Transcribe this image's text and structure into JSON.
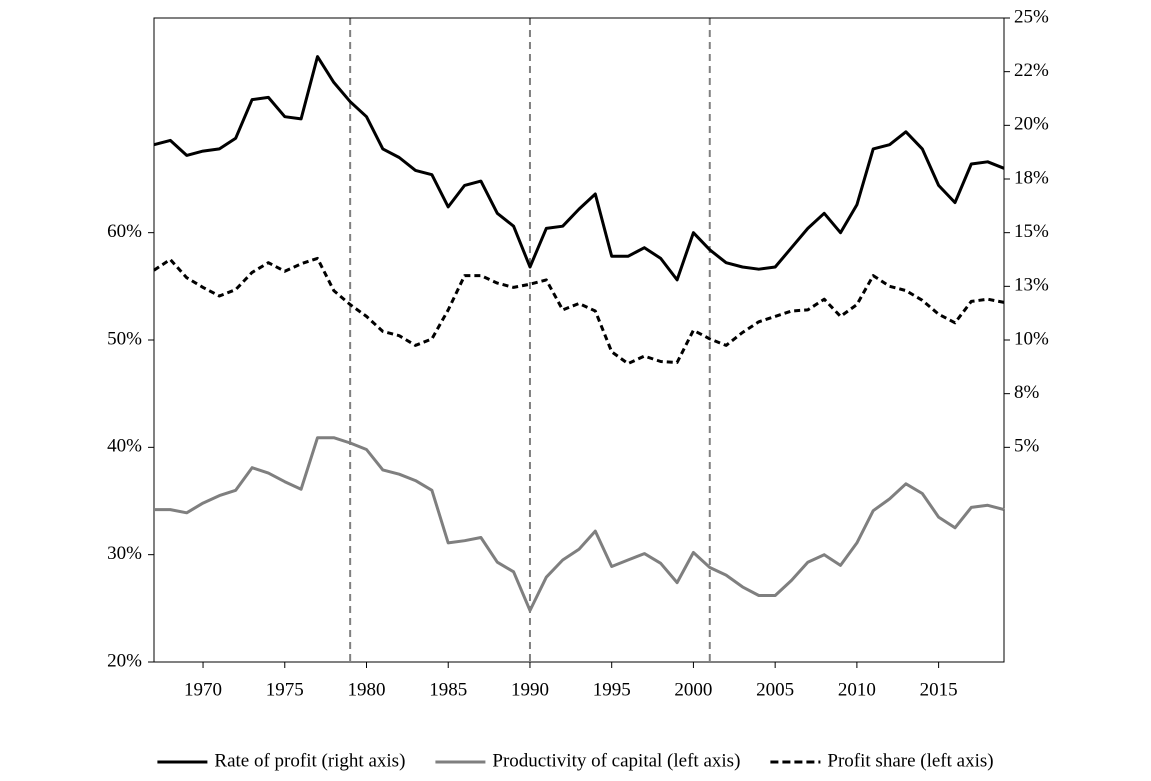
{
  "chart_data": {
    "type": "line",
    "x": [
      1967,
      1968,
      1969,
      1970,
      1971,
      1972,
      1973,
      1974,
      1975,
      1976,
      1977,
      1978,
      1979,
      1980,
      1981,
      1982,
      1983,
      1984,
      1985,
      1986,
      1987,
      1988,
      1989,
      1990,
      1991,
      1992,
      1993,
      1994,
      1995,
      1996,
      1997,
      1998,
      1999,
      2000,
      2001,
      2002,
      2003,
      2004,
      2005,
      2006,
      2007,
      2008,
      2009,
      2010,
      2011,
      2012,
      2013,
      2014,
      2015,
      2016,
      2017,
      2018,
      2019
    ],
    "xlim": [
      1967,
      2019
    ],
    "xticks": [
      1970,
      1975,
      1980,
      1985,
      1990,
      1995,
      2000,
      2005,
      2010,
      2015
    ],
    "ylim": [
      20,
      80
    ],
    "yticks": [
      {
        "value": 20,
        "label": "20%"
      },
      {
        "value": 30,
        "label": "30%"
      },
      {
        "value": 40,
        "label": "40%"
      },
      {
        "value": 50,
        "label": "50%"
      },
      {
        "value": 60,
        "label": "60%"
      }
    ],
    "y2lim": [
      -5,
      25
    ],
    "y2ticks": [
      {
        "value": 25,
        "label": "25%"
      },
      {
        "value": 22.5,
        "label": "22%"
      },
      {
        "value": 20,
        "label": "20%"
      },
      {
        "value": 17.5,
        "label": "18%"
      },
      {
        "value": 15,
        "label": "15%"
      },
      {
        "value": 12.5,
        "label": "13%"
      },
      {
        "value": 10,
        "label": "10%"
      },
      {
        "value": 7.5,
        "label": "8%"
      },
      {
        "value": 5,
        "label": "5%"
      }
    ],
    "vlines": [
      1979,
      1990,
      2001
    ],
    "legend": "bottom",
    "series": [
      {
        "name": "Rate of profit (right axis)",
        "color": "#000000",
        "dash": false,
        "axis": "y2",
        "values": [
          19.1,
          19.3,
          18.6,
          18.8,
          18.9,
          19.4,
          21.2,
          21.3,
          20.4,
          20.3,
          23.2,
          22.0,
          21.1,
          20.4,
          18.9,
          18.5,
          17.9,
          17.7,
          16.2,
          17.2,
          17.4,
          15.9,
          15.3,
          13.4,
          15.2,
          15.3,
          16.1,
          16.8,
          13.9,
          13.9,
          14.3,
          13.8,
          12.8,
          15.0,
          14.2,
          13.6,
          13.4,
          13.3,
          13.4,
          14.3,
          15.2,
          15.9,
          15.0,
          16.3,
          18.9,
          19.1,
          19.7,
          18.9,
          17.2,
          16.4,
          18.2,
          18.3,
          18.0
        ]
      },
      {
        "name": "Productivity of capital (left axis)",
        "color": "#7f7f7f",
        "dash": false,
        "values": [
          34.2,
          34.2,
          33.9,
          34.8,
          35.5,
          36.0,
          38.1,
          37.6,
          36.8,
          36.1,
          40.9,
          40.9,
          40.4,
          39.8,
          37.9,
          37.5,
          36.9,
          36.0,
          31.1,
          31.3,
          31.6,
          29.3,
          28.4,
          24.8,
          27.9,
          29.5,
          30.5,
          32.2,
          28.9,
          29.5,
          30.1,
          29.2,
          27.4,
          30.2,
          28.8,
          28.1,
          27.0,
          26.2,
          26.2,
          27.6,
          29.3,
          30.0,
          29.0,
          31.1,
          34.1,
          35.2,
          36.6,
          35.7,
          33.5,
          32.5,
          34.4,
          34.6,
          34.2
        ]
      },
      {
        "name": "Profit share (left axis)",
        "color": "#000000",
        "dash": true,
        "values": [
          56.5,
          57.5,
          55.8,
          54.9,
          54.1,
          54.7,
          56.3,
          57.2,
          56.4,
          57.1,
          57.6,
          54.6,
          53.3,
          52.2,
          50.8,
          50.4,
          49.5,
          50.1,
          52.8,
          56.0,
          56.0,
          55.3,
          54.9,
          55.2,
          55.6,
          52.8,
          53.4,
          52.7,
          48.9,
          47.8,
          48.5,
          48.0,
          47.9,
          50.9,
          50.1,
          49.5,
          50.7,
          51.7,
          52.2,
          52.7,
          52.8,
          53.8,
          52.2,
          53.3,
          56.0,
          55.0,
          54.6,
          53.7,
          52.4,
          51.6,
          53.6,
          53.8,
          53.5
        ]
      }
    ]
  }
}
